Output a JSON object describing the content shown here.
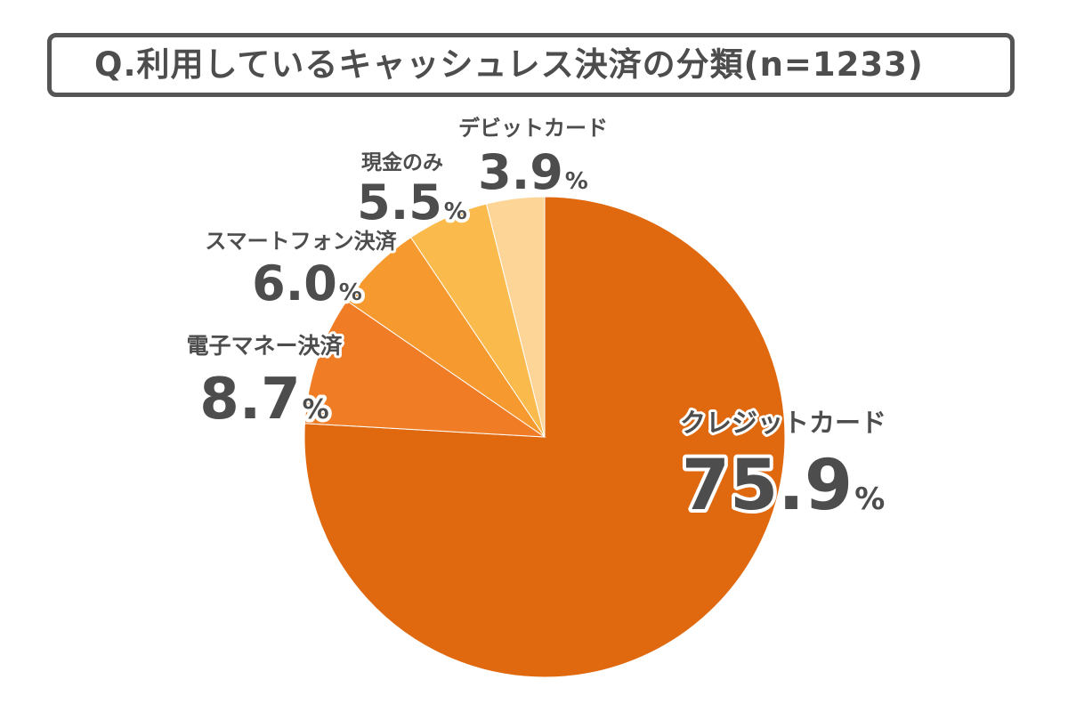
{
  "chart_data": {
    "type": "pie",
    "title": "Q.利用しているキャッシュレス決済の分類(n=1233)",
    "unit": "%",
    "slices": [
      {
        "label": "クレジットカード",
        "value": 75.9,
        "display": "75.9",
        "color": "#E0690F"
      },
      {
        "label": "電子マネー決済",
        "value": 8.7,
        "display": "8.7",
        "color": "#F07D26"
      },
      {
        "label": "スマートフォン決済",
        "value": 6.0,
        "display": "6.0",
        "color": "#F6992E"
      },
      {
        "label": "現金のみ",
        "value": 5.5,
        "display": "5.5",
        "color": "#FBBA4C"
      },
      {
        "label": "デビットカード",
        "value": 3.9,
        "display": "3.9",
        "color": "#FDD596"
      }
    ]
  }
}
